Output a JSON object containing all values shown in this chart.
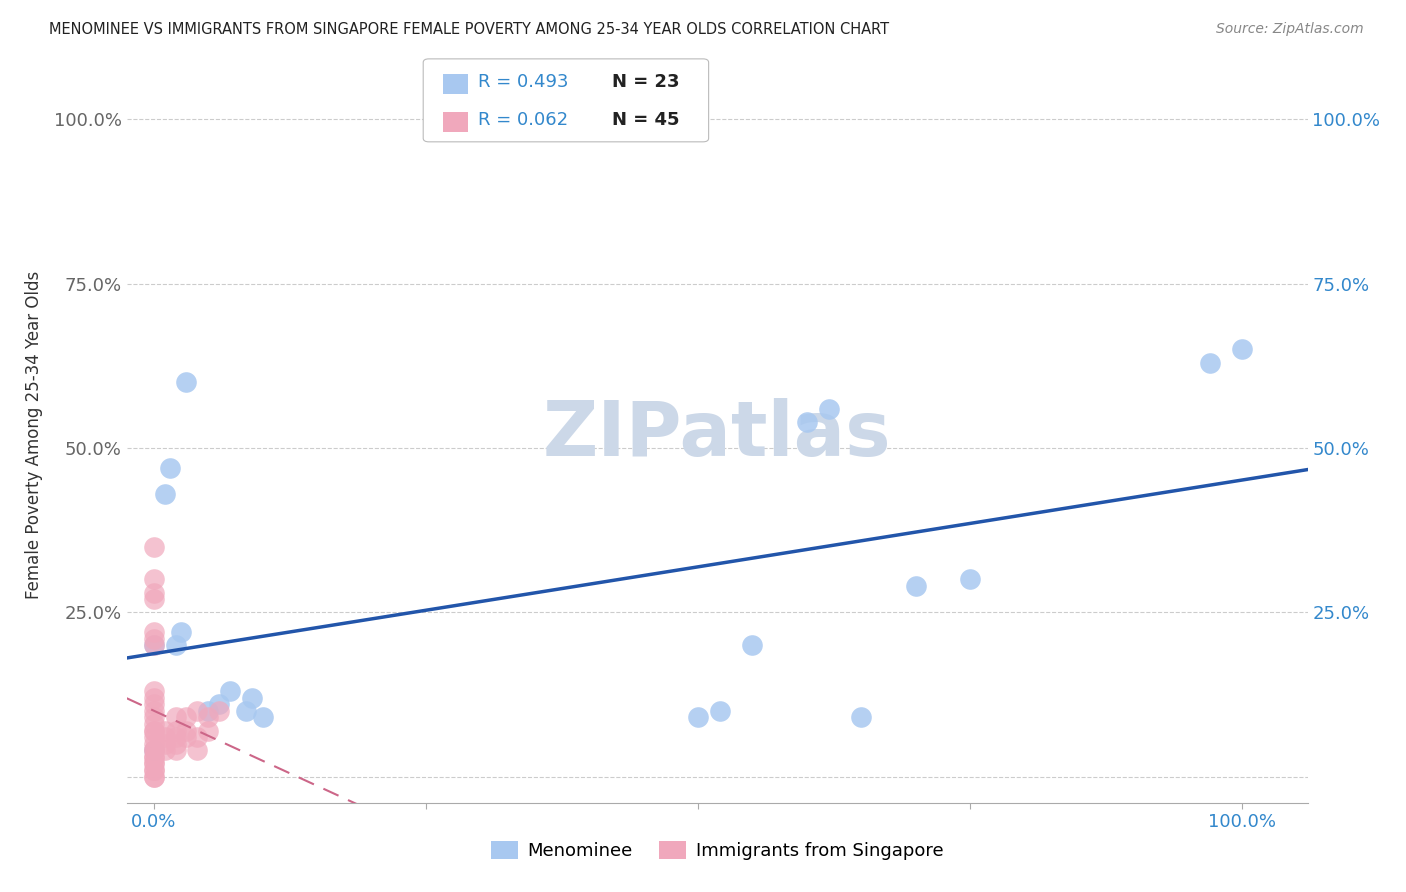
{
  "title": "MENOMINEE VS IMMIGRANTS FROM SINGAPORE FEMALE POVERTY AMONG 25-34 YEAR OLDS CORRELATION CHART",
  "source": "Source: ZipAtlas.com",
  "ylabel": "Female Poverty Among 25-34 Year Olds",
  "menominee_color": "#a8c8f0",
  "singapore_color": "#f0a8bc",
  "menominee_line_color": "#2255aa",
  "singapore_line_color": "#cc6688",
  "watermark_color": "#ccd8e8",
  "grid_color": "#cccccc",
  "background_color": "#ffffff",
  "menominee_R": "R = 0.493",
  "menominee_N": "N = 23",
  "singapore_R": "R = 0.062",
  "singapore_N": "N = 45",
  "men_x": [
    0.0,
    0.0,
    0.01,
    0.015,
    0.02,
    0.025,
    0.03,
    0.05,
    0.06,
    0.07,
    0.085,
    0.09,
    0.1,
    0.5,
    0.52,
    0.55,
    0.6,
    0.62,
    0.65,
    0.7,
    0.75,
    0.97,
    1.0
  ],
  "men_y": [
    0.2,
    0.04,
    0.43,
    0.47,
    0.2,
    0.22,
    0.6,
    0.1,
    0.11,
    0.13,
    0.1,
    0.12,
    0.09,
    0.09,
    0.1,
    0.2,
    0.54,
    0.56,
    0.09,
    0.29,
    0.3,
    0.63,
    0.65
  ],
  "sing_x": [
    0.0,
    0.0,
    0.0,
    0.0,
    0.0,
    0.0,
    0.0,
    0.0,
    0.0,
    0.0,
    0.0,
    0.0,
    0.0,
    0.0,
    0.0,
    0.0,
    0.0,
    0.0,
    0.0,
    0.0,
    0.0,
    0.0,
    0.0,
    0.0,
    0.0,
    0.0,
    0.0,
    0.01,
    0.01,
    0.01,
    0.01,
    0.02,
    0.02,
    0.02,
    0.02,
    0.02,
    0.03,
    0.03,
    0.03,
    0.04,
    0.04,
    0.04,
    0.05,
    0.05,
    0.06
  ],
  "sing_y": [
    0.0,
    0.0,
    0.01,
    0.01,
    0.02,
    0.02,
    0.03,
    0.03,
    0.04,
    0.04,
    0.05,
    0.06,
    0.07,
    0.07,
    0.08,
    0.09,
    0.1,
    0.11,
    0.12,
    0.13,
    0.2,
    0.21,
    0.22,
    0.27,
    0.28,
    0.3,
    0.35,
    0.04,
    0.05,
    0.06,
    0.07,
    0.04,
    0.05,
    0.06,
    0.07,
    0.09,
    0.06,
    0.07,
    0.09,
    0.04,
    0.06,
    0.1,
    0.07,
    0.09,
    0.1
  ],
  "xlim": [
    -0.025,
    1.06
  ],
  "ylim": [
    -0.04,
    1.08
  ],
  "xticks": [
    0.0,
    0.25,
    0.5,
    0.75,
    1.0
  ],
  "yticks": [
    0.0,
    0.25,
    0.5,
    0.75,
    1.0
  ],
  "xtick_labels": [
    "0.0%",
    "",
    "",
    "",
    "100.0%"
  ],
  "ytick_labels_left": [
    "",
    "25.0%",
    "50.0%",
    "75.0%",
    "100.0%"
  ],
  "ytick_labels_right": [
    "",
    "25.0%",
    "50.0%",
    "75.0%",
    "100.0%"
  ]
}
